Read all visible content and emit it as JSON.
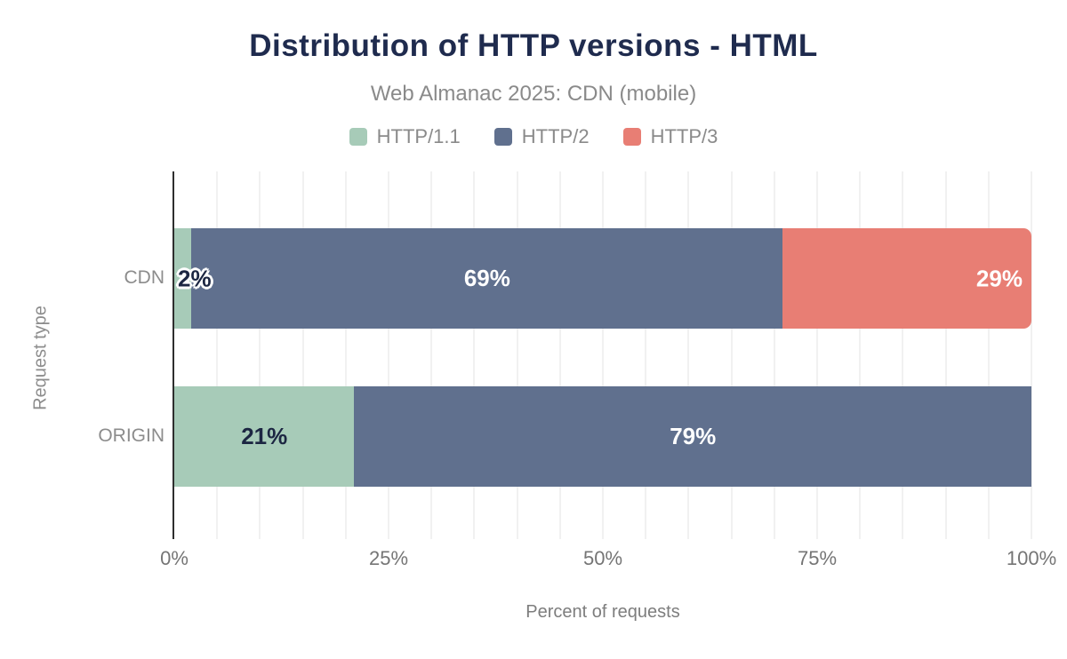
{
  "chart_data": {
    "type": "bar",
    "orientation": "horizontal",
    "stacked": true,
    "title": "Distribution of HTTP versions - HTML",
    "subtitle": "Web Almanac 2025: CDN (mobile)",
    "xlabel": "Percent of requests",
    "ylabel": "Request type",
    "xlim": [
      0,
      100
    ],
    "gridline_step": 5,
    "grid": true,
    "legend_position": "top-center",
    "x_ticks": [
      {
        "value": 0,
        "label": "0%"
      },
      {
        "value": 25,
        "label": "25%"
      },
      {
        "value": 50,
        "label": "50%"
      },
      {
        "value": 75,
        "label": "75%"
      },
      {
        "value": 100,
        "label": "100%"
      }
    ],
    "categories": [
      "CDN",
      "ORIGIN"
    ],
    "series": [
      {
        "name": "HTTP/1.1",
        "color": "#a7cbb8",
        "values": [
          2,
          21
        ]
      },
      {
        "name": "HTTP/2",
        "color": "#60708e",
        "values": [
          69,
          79
        ]
      },
      {
        "name": "HTTP/3",
        "color": "#e87e74",
        "values": [
          29,
          0
        ]
      }
    ],
    "bars": [
      {
        "category": "CDN",
        "segments": [
          {
            "series": "HTTP/1.1",
            "value": 2,
            "label": "2%",
            "label_style": "dark-outline",
            "label_align": "start",
            "rounded_end": false
          },
          {
            "series": "HTTP/2",
            "value": 69,
            "label": "69%",
            "label_style": "light",
            "label_align": "center",
            "rounded_end": false
          },
          {
            "series": "HTTP/3",
            "value": 29,
            "label": "29%",
            "label_style": "light",
            "label_align": "end",
            "rounded_end": true
          }
        ]
      },
      {
        "category": "ORIGIN",
        "segments": [
          {
            "series": "HTTP/1.1",
            "value": 21,
            "label": "21%",
            "label_style": "dark",
            "label_align": "center",
            "rounded_end": false
          },
          {
            "series": "HTTP/2",
            "value": 79,
            "label": "79%",
            "label_style": "light",
            "label_align": "center",
            "rounded_end": false
          }
        ]
      }
    ]
  },
  "colors": {
    "title": "#1f2b4e",
    "subtitle": "#8a8a8a",
    "legend_text": "#8a8a8a",
    "tick_text": "#757575",
    "category_text": "#8c8c8c",
    "axis_line": "#2e2e2e",
    "gridline": "#f1f1f1",
    "label_light": "#ffffff",
    "label_dark": "#1c2642",
    "background": "#ffffff"
  }
}
